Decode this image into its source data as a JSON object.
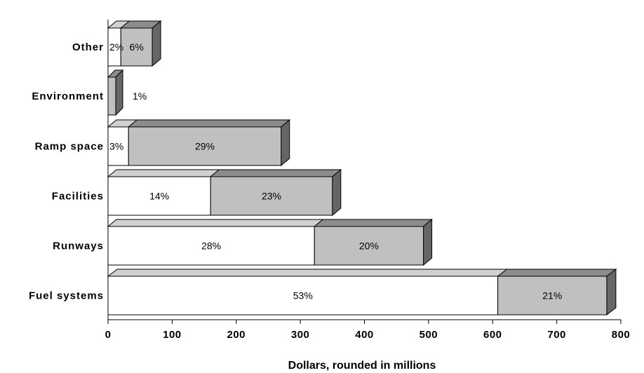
{
  "chart_data": {
    "type": "bar",
    "orientation": "horizontal",
    "stacked": true,
    "three_d": true,
    "title": "",
    "xlabel": "Dollars, rounded in millions",
    "ylabel": "",
    "xlim": [
      0,
      800
    ],
    "xticks": [
      "0",
      "100",
      "200",
      "300",
      "400",
      "500",
      "600",
      "700",
      "800"
    ],
    "categories": [
      "Other",
      "Environment",
      "Ramp space",
      "Facilities",
      "Runways",
      "Fuel systems"
    ],
    "series": [
      {
        "values": [
          20,
          0,
          32,
          160,
          322,
          608
        ],
        "labels": [
          "2%",
          "",
          "3%",
          "14%",
          "28%",
          "53%"
        ],
        "color": "#ffffff"
      },
      {
        "values": [
          49,
          12,
          238,
          190,
          170,
          170
        ],
        "labels": [
          "6%",
          "1%",
          "29%",
          "23%",
          "20%",
          "21%"
        ],
        "color": "#c0c0c0"
      }
    ],
    "grid": false,
    "legend": "none"
  }
}
